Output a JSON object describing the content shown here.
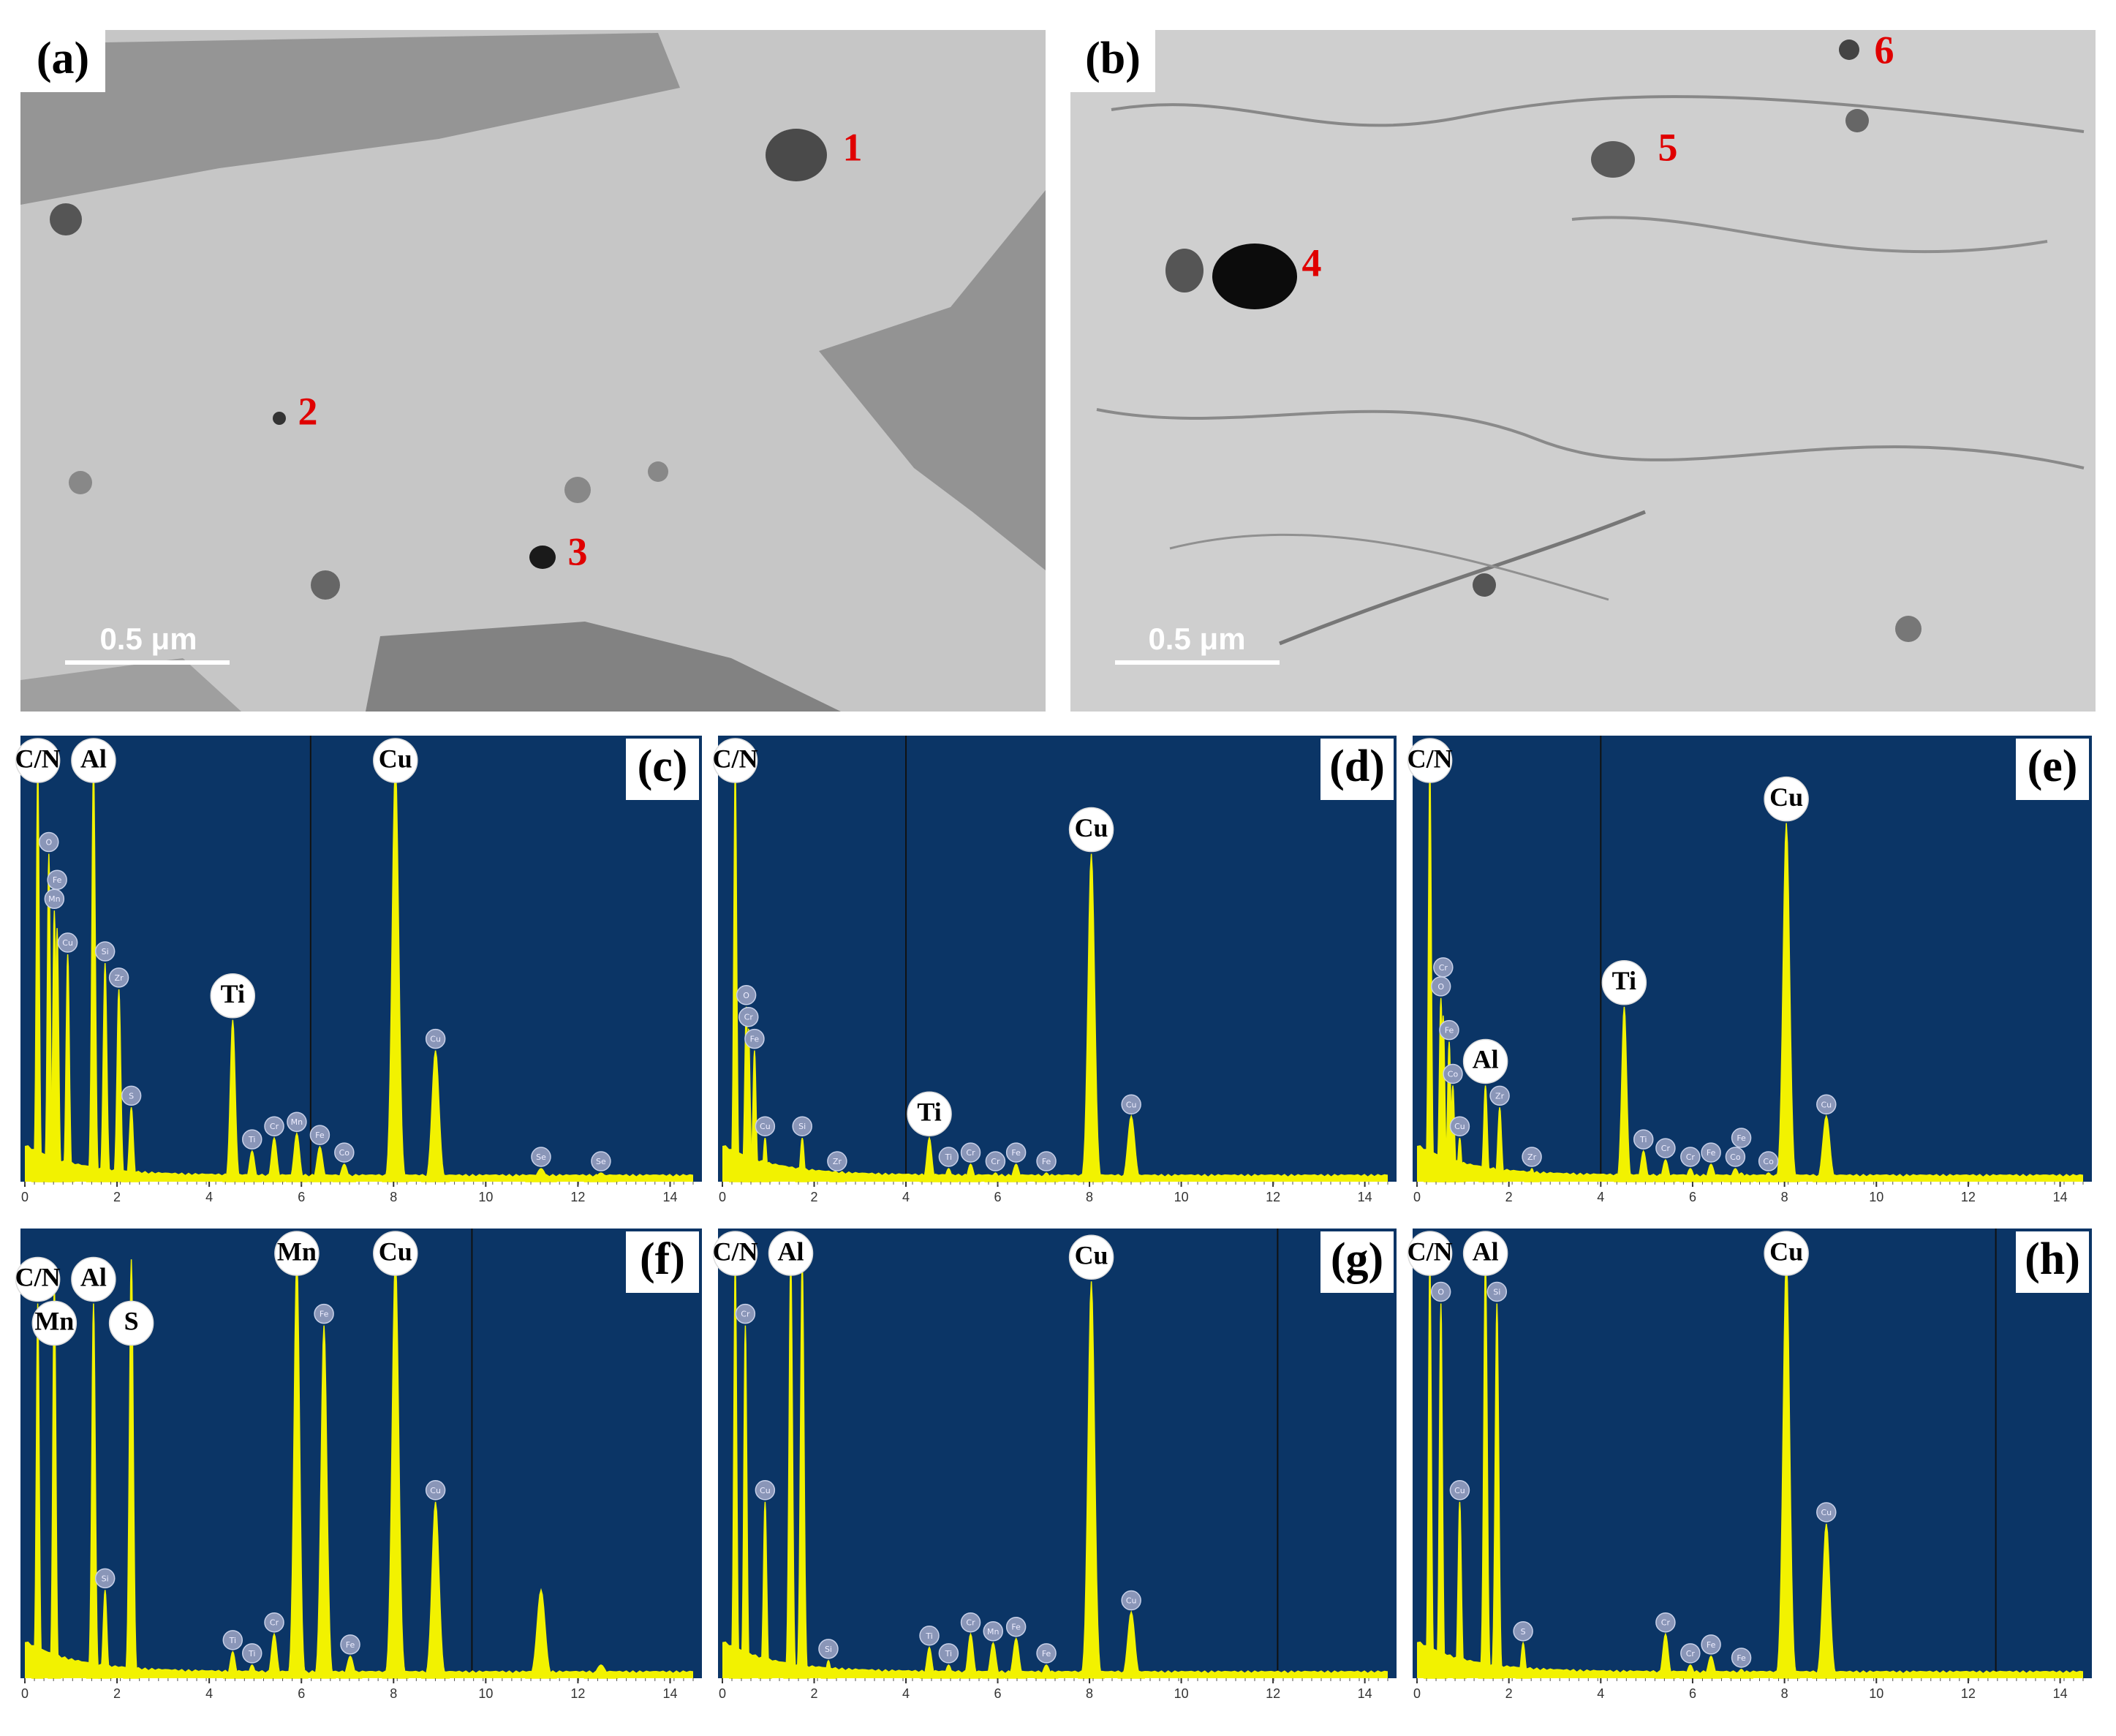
{
  "images": [
    {
      "label": "(a)",
      "scale_bar": "0.5 μm",
      "particles": [
        "1",
        "2",
        "3"
      ]
    },
    {
      "label": "(b)",
      "scale_bar": "0.5 μm",
      "particles": [
        "4",
        "5",
        "6"
      ]
    }
  ],
  "chart_data": [
    {
      "type": "spectrum",
      "label": "(c)",
      "xlim": [
        0,
        14.5
      ],
      "ylim": [
        0,
        100
      ],
      "xticks": [
        0,
        2,
        4,
        6,
        8,
        10,
        12,
        14
      ],
      "cursor": 6.2,
      "x": [
        0.28,
        0.52,
        0.64,
        0.7,
        0.93,
        1.49,
        1.74,
        2.04,
        2.31,
        4.51,
        4.93,
        5.41,
        5.9,
        6.4,
        6.93,
        8.04,
        8.91,
        11.2,
        12.5
      ],
      "values": [
        95,
        75,
        62,
        58,
        52,
        95,
        50,
        44,
        17,
        37,
        7,
        10,
        11,
        8,
        4,
        95,
        30,
        3,
        2
      ],
      "peak_labels": [
        "C/N",
        "O",
        "Mn",
        "Fe",
        "Cu",
        "Al",
        "Si",
        "Zr",
        "S",
        "Ti",
        "Ti",
        "Cr",
        "Mn",
        "Fe",
        "Co",
        "Cu",
        "Cu",
        "Se",
        "Se"
      ],
      "big_labels": [
        true,
        false,
        false,
        false,
        false,
        true,
        false,
        false,
        false,
        true,
        false,
        false,
        false,
        false,
        false,
        true,
        false,
        false,
        false
      ]
    },
    {
      "type": "spectrum",
      "label": "(d)",
      "xlim": [
        0,
        14.5
      ],
      "ylim": [
        0,
        100
      ],
      "xticks": [
        0,
        2,
        4,
        6,
        8,
        10,
        12,
        14
      ],
      "cursor": 4.0,
      "x": [
        0.28,
        0.52,
        0.57,
        0.7,
        0.93,
        1.74,
        2.5,
        4.51,
        4.93,
        5.41,
        5.95,
        6.4,
        7.06,
        8.04,
        8.91
      ],
      "values": [
        95,
        40,
        35,
        30,
        10,
        10,
        2,
        10,
        3,
        4,
        2,
        4,
        2,
        75,
        15
      ],
      "peak_labels": [
        "C/N",
        "O",
        "Cr",
        "Fe",
        "Cu",
        "Si",
        "Zr",
        "Ti",
        "Ti",
        "Cr",
        "Cr",
        "Fe",
        "Fe",
        "Cu",
        "Cu"
      ],
      "big_labels": [
        true,
        false,
        false,
        false,
        false,
        false,
        false,
        true,
        false,
        false,
        false,
        false,
        false,
        true,
        false
      ]
    },
    {
      "type": "spectrum",
      "label": "(e)",
      "xlim": [
        0,
        14.5
      ],
      "ylim": [
        0,
        100
      ],
      "xticks": [
        0,
        2,
        4,
        6,
        8,
        10,
        12,
        14
      ],
      "cursor": 4.0,
      "x": [
        0.28,
        0.52,
        0.57,
        0.7,
        0.78,
        0.93,
        1.49,
        1.8,
        2.5,
        4.51,
        4.93,
        5.41,
        5.95,
        6.4,
        6.93,
        7.06,
        7.65,
        8.04,
        8.91
      ],
      "values": [
        95,
        42,
        38,
        32,
        22,
        10,
        22,
        17,
        3,
        40,
        7,
        5,
        3,
        4,
        3,
        2,
        2,
        82,
        15
      ],
      "peak_labels": [
        "C/N",
        "O",
        "Cr",
        "Fe",
        "Co",
        "Cu",
        "Al",
        "Zr",
        "Zr",
        "Ti",
        "Ti",
        "Cr",
        "Cr",
        "Fe",
        "Co",
        "Fe",
        "Co",
        "Cu",
        "Cu"
      ],
      "big_labels": [
        true,
        false,
        false,
        false,
        false,
        false,
        true,
        false,
        false,
        true,
        false,
        false,
        false,
        false,
        false,
        false,
        false,
        true,
        false
      ]
    },
    {
      "type": "spectrum",
      "label": "(f)",
      "xlim": [
        0,
        14.5
      ],
      "ylim": [
        0,
        100
      ],
      "xticks": [
        0,
        2,
        4,
        6,
        8,
        10,
        12,
        14
      ],
      "cursor": 9.7,
      "x": [
        0.28,
        0.64,
        1.49,
        1.74,
        2.31,
        4.51,
        4.93,
        5.41,
        5.9,
        6.49,
        7.06,
        8.04,
        8.91,
        11.2,
        12.5
      ],
      "values": [
        85,
        90,
        85,
        20,
        95,
        6,
        3,
        10,
        95,
        80,
        5,
        95,
        40,
        20,
        3
      ],
      "peak_labels": [
        "C/N",
        "Mn",
        "Al",
        "Si",
        "S",
        "Ti",
        "Ti",
        "Cr",
        "Mn",
        "Fe",
        "Fe",
        "Cu",
        "Cu",
        null,
        null
      ],
      "big_labels": [
        true,
        true,
        true,
        false,
        true,
        false,
        false,
        false,
        true,
        false,
        false,
        true,
        false,
        false,
        false
      ]
    },
    {
      "type": "spectrum",
      "label": "(g)",
      "xlim": [
        0,
        14.5
      ],
      "ylim": [
        0,
        100
      ],
      "xticks": [
        0,
        2,
        4,
        6,
        8,
        10,
        12,
        14
      ],
      "cursor": 12.1,
      "x": [
        0.28,
        0.5,
        0.93,
        1.49,
        1.74,
        2.31,
        4.51,
        4.93,
        5.41,
        5.9,
        6.4,
        7.06,
        8.04,
        8.91
      ],
      "values": [
        95,
        80,
        40,
        95,
        95,
        4,
        7,
        3,
        10,
        8,
        9,
        3,
        90,
        15
      ],
      "peak_labels": [
        "C/N",
        "Cr",
        "Cu",
        "Al",
        null,
        "Si",
        "Ti",
        "Ti",
        "Cr",
        "Mn",
        "Fe",
        "Fe",
        "Cu",
        "Cu"
      ],
      "big_labels": [
        true,
        false,
        false,
        true,
        false,
        false,
        false,
        false,
        false,
        false,
        false,
        false,
        true,
        false
      ]
    },
    {
      "type": "spectrum",
      "label": "(h)",
      "xlim": [
        0,
        14.5
      ],
      "ylim": [
        0,
        100
      ],
      "xticks": [
        0,
        2,
        4,
        6,
        8,
        10,
        12,
        14
      ],
      "cursor": 12.6,
      "x": [
        0.28,
        0.52,
        0.93,
        1.49,
        1.74,
        2.31,
        5.41,
        5.95,
        6.4,
        7.06,
        8.04,
        8.91
      ],
      "values": [
        95,
        85,
        40,
        95,
        85,
        8,
        10,
        3,
        5,
        2,
        95,
        35
      ],
      "peak_labels": [
        "C/N",
        "O",
        "Cu",
        "Al",
        "Si",
        "S",
        "Cr",
        "Cr",
        "Fe",
        "Fe",
        "Cu",
        "Cu"
      ],
      "big_labels": [
        true,
        false,
        false,
        true,
        false,
        false,
        false,
        false,
        false,
        false,
        true,
        false
      ]
    }
  ]
}
